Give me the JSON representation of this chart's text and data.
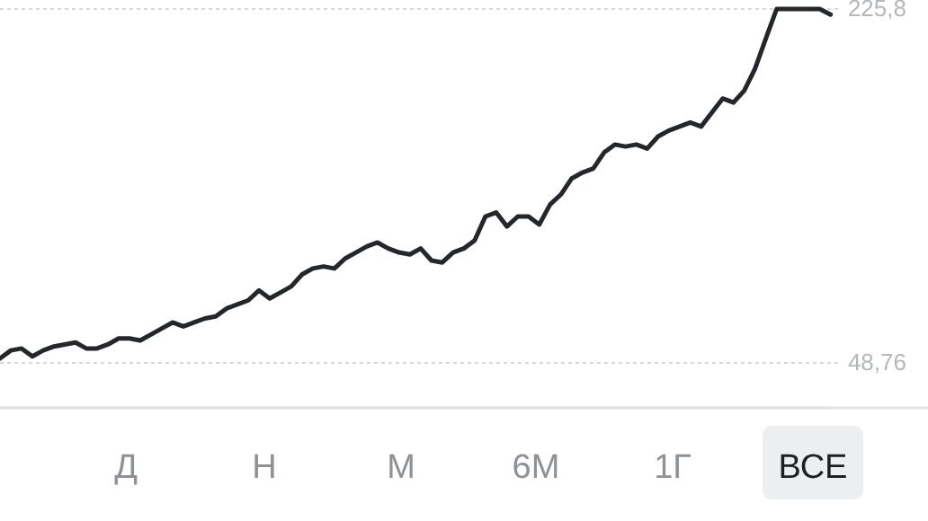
{
  "chart_data": {
    "type": "line",
    "categories": [
      null,
      null,
      null,
      null,
      null,
      null,
      null,
      null,
      null,
      null,
      null,
      null,
      null,
      null,
      null,
      null,
      null,
      null,
      null,
      null,
      null,
      null,
      null,
      null,
      null,
      null,
      null,
      null,
      null,
      null,
      null,
      null,
      null,
      null,
      null,
      null,
      null,
      null,
      null,
      null,
      null,
      null,
      null,
      null,
      null,
      null,
      null,
      null,
      null,
      null,
      null,
      null,
      null,
      null,
      null,
      null,
      null,
      null,
      null,
      null,
      null,
      null,
      null,
      null,
      null,
      null,
      null,
      null,
      null,
      null,
      null,
      null,
      null,
      null,
      null,
      null,
      null,
      null
    ],
    "series": [
      {
        "color": "#23262b",
        "values": [
          51,
          55,
          56,
          52,
          55,
          57,
          58,
          59,
          56,
          56,
          58,
          61,
          61,
          60,
          63,
          66,
          69,
          67,
          69,
          71,
          72,
          76,
          78,
          80,
          85,
          81,
          84,
          87,
          93,
          96,
          97,
          96,
          101,
          104,
          107,
          109,
          106,
          104,
          103,
          106,
          100,
          99,
          104,
          106,
          110,
          122,
          124,
          117,
          122,
          122,
          118,
          128,
          133,
          141,
          144,
          146,
          154,
          158,
          157,
          158,
          156,
          162,
          165,
          167,
          169,
          167,
          174,
          181,
          179,
          185,
          196,
          211,
          225.8,
          225.8,
          225.8,
          225.8,
          225.8,
          223
        ]
      }
    ],
    "ylim": [
      26.3,
      225.8
    ],
    "yticks": [
      {
        "value": 48.76,
        "label": "48,76"
      },
      {
        "value": 225.8,
        "label": "225,8"
      }
    ],
    "grid": "y",
    "tick_labels": "y",
    "marker": "none",
    "line_style": "solid",
    "annotations": [
      "Д",
      "Н",
      "М",
      "6М",
      "1Г",
      "ВСЕ"
    ]
  }
}
